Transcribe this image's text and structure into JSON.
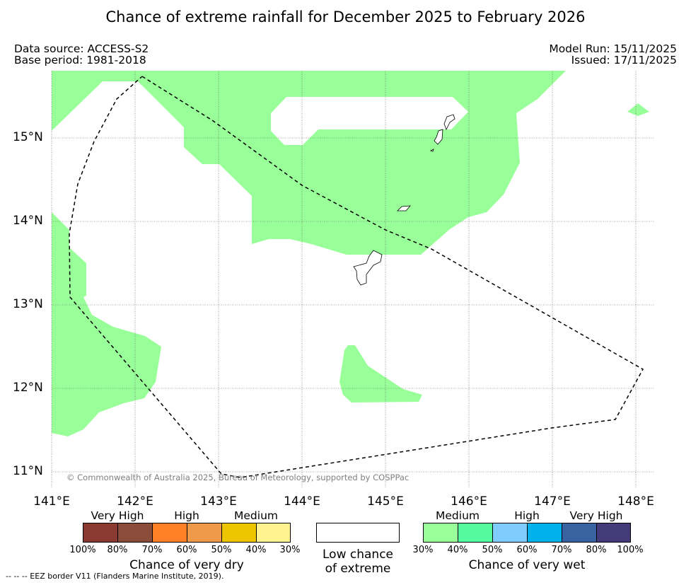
{
  "title": "Chance of extreme rainfall for December 2025 to February 2026",
  "meta": {
    "data_source": "Data source: ACCESS-S2",
    "base_period": "Base period: 1981-2018",
    "model_run": "Model Run: 15/11/2025",
    "issued": "Issued: 17/11/2025"
  },
  "map": {
    "copyright": "© Commonwealth of Australia 2025, Bureau of Meteorology, supported by COSPPac",
    "lat_labels": [
      "15°N",
      "14°N",
      "13°N",
      "12°N",
      "11°N"
    ],
    "lon_labels": [
      "141°E",
      "142°E",
      "143°E",
      "144°E",
      "145°E",
      "146°E",
      "147°E",
      "148°E"
    ],
    "wet_region_color": "#99ff99",
    "eez_border_color": "#000000"
  },
  "legend": {
    "dry": {
      "categories": [
        "Very High",
        "High",
        "Medium"
      ],
      "percentages": [
        "100%",
        "80%",
        "70%",
        "60%",
        "50%",
        "40%",
        "30%"
      ],
      "colors": [
        "#8b3a32",
        "#8b4d3a",
        "#ff8026",
        "#ee9a4a",
        "#eec600",
        "#fff48f"
      ],
      "title": "Chance of very dry"
    },
    "low": {
      "title_line1": "Low chance",
      "title_line2": "of extreme",
      "color": "#ffffff"
    },
    "wet": {
      "categories": [
        "Medium",
        "High",
        "Very High"
      ],
      "percentages": [
        "30%",
        "40%",
        "50%",
        "60%",
        "70%",
        "80%",
        "100%"
      ],
      "colors": [
        "#99ff99",
        "#55f99e",
        "#7fcdff",
        "#00b1ec",
        "#3862a0",
        "#433b7a"
      ],
      "title": "Chance of very wet"
    }
  },
  "footnote": "--  --  -- EEZ border V11 (Flanders Marine Institute, 2019)."
}
